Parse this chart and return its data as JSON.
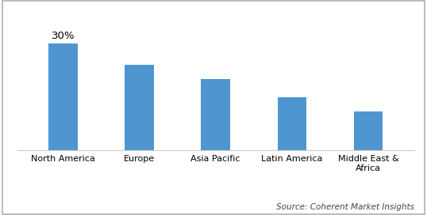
{
  "categories": [
    "North America",
    "Europe",
    "Asia Pacific",
    "Latin America",
    "Middle East &\nAfrica"
  ],
  "values": [
    30,
    24,
    20,
    15,
    11
  ],
  "bar_color": "#4f96d0",
  "annotation": "30%",
  "annotation_index": 0,
  "source_text": "Source: Coherent Market Insights",
  "ylim": [
    0,
    38
  ],
  "bar_width": 0.38,
  "background_color": "#ffffff",
  "border_color": "#b0b0b0",
  "annotation_fontsize": 9.5,
  "xlabel_fontsize": 8,
  "source_fontsize": 7.5
}
